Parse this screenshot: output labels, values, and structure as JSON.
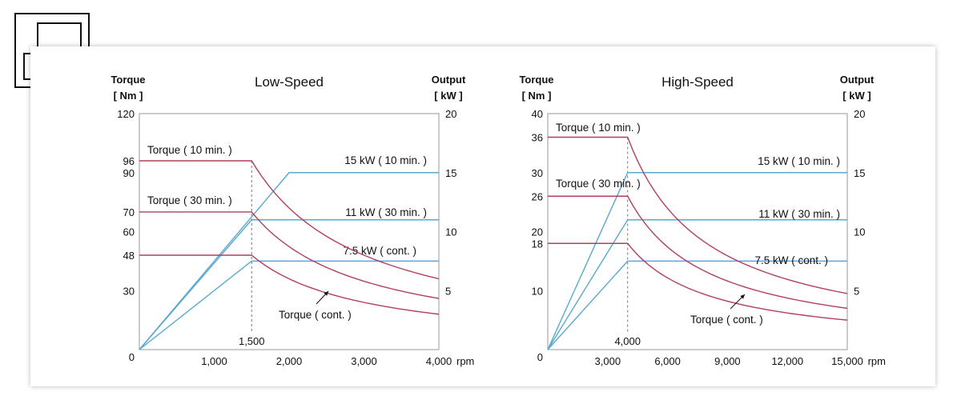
{
  "chart_data": [
    {
      "type": "line",
      "title": "Low-Speed",
      "ylabel_left": [
        "Torque",
        "[ Nm ]"
      ],
      "ylabel_right": [
        "Output",
        "[ kW ]"
      ],
      "x_unit": "rpm",
      "xlim": [
        0,
        4000
      ],
      "ylim_left": [
        0,
        120
      ],
      "ylim_right": [
        0,
        20
      ],
      "x_ticks": [
        {
          "value": 1000,
          "label": "1,000"
        },
        {
          "value": 2000,
          "label": "2,000"
        },
        {
          "value": 3000,
          "label": "3,000"
        },
        {
          "value": 4000,
          "label": "4,000"
        }
      ],
      "origin_label": "0",
      "left_ticks": [
        {
          "value": 120,
          "label": "120"
        },
        {
          "value": 96,
          "label": "96"
        },
        {
          "value": 90,
          "label": "90"
        },
        {
          "value": 70,
          "label": "70"
        },
        {
          "value": 60,
          "label": "60"
        },
        {
          "value": 48,
          "label": "48"
        },
        {
          "value": 30,
          "label": "30"
        }
      ],
      "right_ticks": [
        {
          "value": 20,
          "label": "20"
        },
        {
          "value": 15,
          "label": "15"
        },
        {
          "value": 10,
          "label": "10"
        },
        {
          "value": 5,
          "label": "5"
        }
      ],
      "base_speed": {
        "value": 1500,
        "label": "1,500"
      },
      "power_series": [
        {
          "name": "15 kW ( 10 min. )",
          "kw": 15,
          "corner_rpm": 2000
        },
        {
          "name": "11 kW ( 30 min. )",
          "kw": 11,
          "corner_rpm": 1500
        },
        {
          "name": "7.5 kW ( cont. )",
          "kw": 7.5,
          "corner_rpm": 1500
        }
      ],
      "torque_series": [
        {
          "name": "Torque ( 10 min. )",
          "torque": 96,
          "end_torque": 36
        },
        {
          "name": "Torque ( 30 min. )",
          "torque": 70,
          "end_torque": 26
        },
        {
          "name": "Torque ( cont. )",
          "torque": 48,
          "end_torque": 18
        }
      ]
    },
    {
      "type": "line",
      "title": "High-Speed",
      "ylabel_left": [
        "Torque",
        "[ Nm ]"
      ],
      "ylabel_right": [
        "Output",
        "[ kW ]"
      ],
      "x_unit": "rpm",
      "xlim": [
        0,
        15000
      ],
      "ylim_left": [
        0,
        40
      ],
      "ylim_right": [
        0,
        20
      ],
      "x_ticks": [
        {
          "value": 3000,
          "label": "3,000"
        },
        {
          "value": 6000,
          "label": "6,000"
        },
        {
          "value": 9000,
          "label": "9,000"
        },
        {
          "value": 12000,
          "label": "12,000"
        },
        {
          "value": 15000,
          "label": "15,000"
        }
      ],
      "origin_label": "0",
      "left_ticks": [
        {
          "value": 40,
          "label": "40"
        },
        {
          "value": 36,
          "label": "36"
        },
        {
          "value": 30,
          "label": "30"
        },
        {
          "value": 26,
          "label": "26"
        },
        {
          "value": 20,
          "label": "20"
        },
        {
          "value": 18,
          "label": "18"
        },
        {
          "value": 10,
          "label": "10"
        }
      ],
      "right_ticks": [
        {
          "value": 20,
          "label": "20"
        },
        {
          "value": 15,
          "label": "15"
        },
        {
          "value": 10,
          "label": "10"
        },
        {
          "value": 5,
          "label": "5"
        }
      ],
      "base_speed": {
        "value": 4000,
        "label": "4,000"
      },
      "power_series": [
        {
          "name": "15 kW ( 10 min. )",
          "kw": 15,
          "corner_rpm": 4000
        },
        {
          "name": "11 kW ( 30 min. )",
          "kw": 11,
          "corner_rpm": 4000
        },
        {
          "name": "7.5 kW ( cont. )",
          "kw": 7.5,
          "corner_rpm": 4000
        }
      ],
      "torque_series": [
        {
          "name": "Torque ( 10 min. )",
          "torque": 36,
          "end_torque": 9.5
        },
        {
          "name": "Torque ( 30 min. )",
          "torque": 26,
          "end_torque": 7
        },
        {
          "name": "Torque ( cont. )",
          "torque": 18,
          "end_torque": 5
        }
      ]
    }
  ],
  "colors": {
    "torque": "#b0405c",
    "power": "#5aa9cf",
    "axis": "#9a9a9a",
    "text": "#111111"
  }
}
